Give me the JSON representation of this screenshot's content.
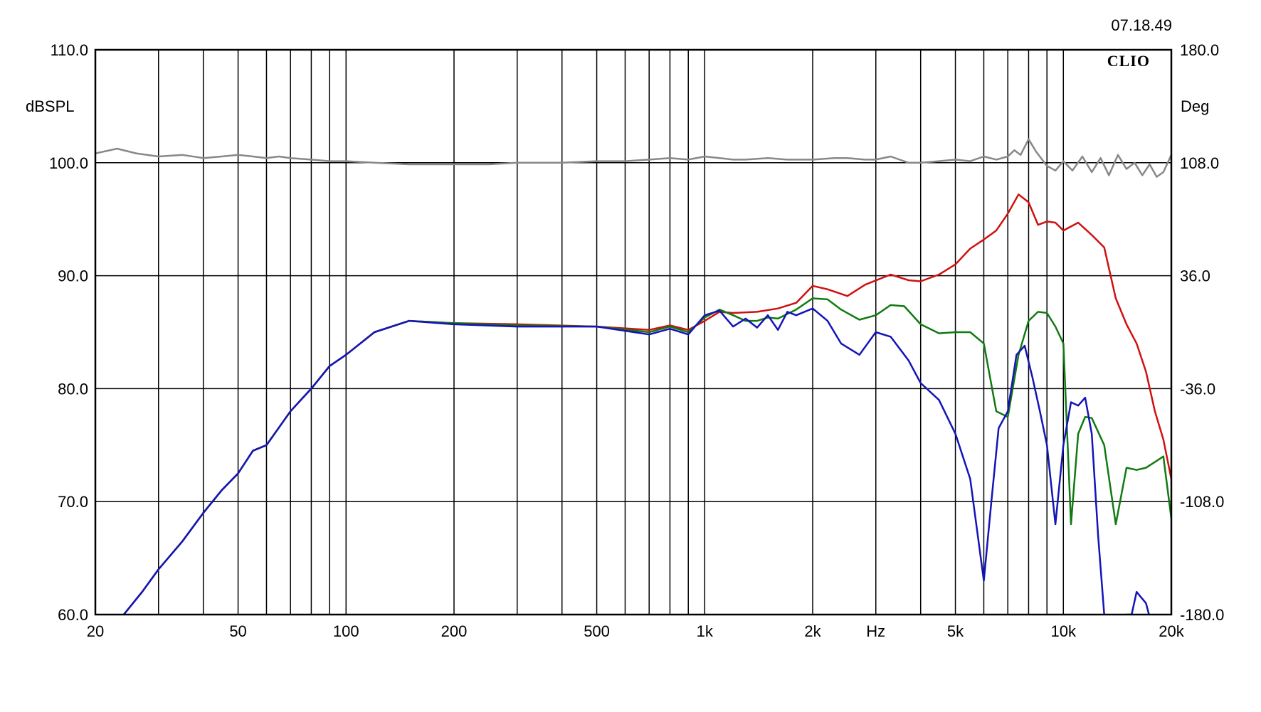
{
  "timestamp": "07.18.49",
  "brand": "CLIO",
  "chart_data": {
    "type": "line",
    "xscale": "log",
    "xlim": [
      20,
      20000
    ],
    "xlabel": "Hz",
    "x_tick_values": [
      20,
      50,
      100,
      200,
      500,
      1000,
      2000,
      5000,
      10000,
      20000
    ],
    "x_tick_labels": [
      "20",
      "50",
      "100",
      "200",
      "500",
      "1k",
      "2k",
      "5k",
      "10k",
      "20k"
    ],
    "x_grid": [
      20,
      30,
      40,
      50,
      60,
      70,
      80,
      90,
      100,
      200,
      300,
      400,
      500,
      600,
      700,
      800,
      900,
      1000,
      2000,
      3000,
      4000,
      5000,
      6000,
      7000,
      8000,
      9000,
      10000,
      20000
    ],
    "ylabel": "dBSPL",
    "ylim": [
      60,
      110
    ],
    "y_ticks": [
      60,
      70,
      80,
      90,
      100,
      110
    ],
    "y_tick_labels": [
      "60.0",
      "70.0",
      "80.0",
      "90.0",
      "100.0",
      "110.0"
    ],
    "y2label": "Deg",
    "y2lim": [
      -180,
      180
    ],
    "y2_ticks": [
      -180,
      -108,
      -36,
      36,
      108,
      180
    ],
    "y2_tick_labels": [
      "-180.0",
      "-108.0",
      "-36.0",
      "36.0",
      "108.0",
      "180.0"
    ],
    "grid": true,
    "series": [
      {
        "color": "#888888",
        "axis": "y2",
        "width": 2.5,
        "x": [
          20,
          23,
          26,
          30,
          35,
          40,
          45,
          50,
          55,
          60,
          65,
          70,
          80,
          90,
          100,
          120,
          150,
          200,
          250,
          300,
          400,
          500,
          600,
          700,
          800,
          900,
          1000,
          1100,
          1200,
          1300,
          1500,
          1700,
          2000,
          2300,
          2500,
          2800,
          3000,
          3300,
          3700,
          4000,
          4500,
          5000,
          5500,
          6000,
          6500,
          7000,
          7300,
          7600,
          8000,
          8400,
          9000,
          9500,
          10000,
          10600,
          11300,
          12000,
          12700,
          13400,
          14200,
          15000,
          15800,
          16600,
          17400,
          18200,
          19000,
          20000
        ],
        "y": [
          114,
          117,
          114,
          112,
          113,
          111,
          112,
          113,
          112,
          111,
          112,
          111,
          110,
          109,
          109,
          108,
          107,
          107,
          107,
          108,
          108,
          109,
          109,
          110,
          111,
          110,
          112,
          111,
          110,
          110,
          111,
          110,
          110,
          111,
          111,
          110,
          110,
          112,
          108,
          108,
          109,
          110,
          109,
          112,
          110,
          112,
          116,
          113,
          123,
          115,
          106,
          103,
          109,
          103,
          112,
          102,
          111,
          100,
          113,
          104,
          108,
          100,
          107,
          99,
          102,
          113
        ]
      },
      {
        "color": "#d01010",
        "axis": "y",
        "width": 2.5,
        "x": [
          20,
          24,
          27,
          30,
          35,
          40,
          45,
          50,
          55,
          60,
          70,
          80,
          90,
          100,
          120,
          150,
          200,
          300,
          500,
          700,
          800,
          900,
          1000,
          1100,
          1200,
          1400,
          1600,
          1800,
          2000,
          2200,
          2500,
          2800,
          3300,
          3700,
          4000,
          4500,
          5000,
          5500,
          6000,
          6500,
          7000,
          7500,
          8000,
          8500,
          9000,
          9500,
          10000,
          11000,
          12000,
          13000,
          14000,
          15000,
          16000,
          17000,
          18000,
          19000,
          20000
        ],
        "y": [
          57,
          60,
          62,
          64,
          66.5,
          69,
          71,
          72.5,
          74.5,
          75,
          78,
          80,
          82,
          83,
          85,
          86,
          85.8,
          85.7,
          85.5,
          85.2,
          85.6,
          85.2,
          86.0,
          86.8,
          86.7,
          86.8,
          87.1,
          87.6,
          89.1,
          88.8,
          88.2,
          89.2,
          90.1,
          89.6,
          89.5,
          90.1,
          91.0,
          92.4,
          93.2,
          94.0,
          95.5,
          97.2,
          96.5,
          94.5,
          94.8,
          94.7,
          94.0,
          94.7,
          93.6,
          92.5,
          88.0,
          85.7,
          84.0,
          81.5,
          78.0,
          75.5,
          72.0
        ]
      },
      {
        "color": "#117a11",
        "axis": "y",
        "width": 2.5,
        "x": [
          20,
          24,
          27,
          30,
          35,
          40,
          45,
          50,
          55,
          60,
          70,
          80,
          90,
          100,
          120,
          150,
          200,
          300,
          500,
          700,
          800,
          900,
          1000,
          1100,
          1200,
          1300,
          1400,
          1500,
          1600,
          1800,
          2000,
          2200,
          2400,
          2700,
          3000,
          3300,
          3600,
          4000,
          4500,
          5000,
          5500,
          6000,
          6500,
          7000,
          7500,
          8000,
          8500,
          9000,
          9500,
          10000,
          10500,
          11000,
          11500,
          12000,
          13000,
          14000,
          15000,
          16000,
          17000,
          18000,
          19000,
          20000
        ],
        "y": [
          57,
          60,
          62,
          64,
          66.5,
          69,
          71,
          72.5,
          74.5,
          75,
          78,
          80,
          82,
          83,
          85,
          86,
          85.8,
          85.6,
          85.5,
          85.0,
          85.5,
          85.0,
          86.3,
          87.0,
          86.5,
          86.0,
          86.0,
          86.3,
          86.2,
          87.0,
          88.0,
          87.9,
          87.0,
          86.1,
          86.5,
          87.4,
          87.3,
          85.7,
          84.9,
          85.0,
          85.0,
          84.0,
          78.0,
          77.5,
          83.0,
          86.0,
          86.8,
          86.7,
          85.5,
          84.0,
          68.0,
          76.0,
          77.5,
          77.4,
          75.0,
          68.0,
          73.0,
          72.8,
          73.0,
          73.5,
          74.0,
          68.5
        ]
      },
      {
        "color": "#1414b8",
        "axis": "y",
        "width": 2.5,
        "x": [
          20,
          24,
          27,
          30,
          35,
          40,
          45,
          50,
          55,
          60,
          70,
          80,
          90,
          100,
          120,
          150,
          200,
          300,
          500,
          700,
          800,
          900,
          1000,
          1100,
          1200,
          1300,
          1400,
          1500,
          1600,
          1700,
          1800,
          2000,
          2200,
          2400,
          2700,
          3000,
          3300,
          3700,
          4000,
          4500,
          5000,
          5500,
          6000,
          6300,
          6600,
          7000,
          7400,
          7800,
          8200,
          8600,
          9000,
          9500,
          10000,
          10500,
          11000,
          11500,
          12000,
          12500,
          13000,
          13500,
          14000,
          14500,
          15000,
          15500,
          16000,
          17000,
          18000,
          19000,
          20000
        ],
        "y": [
          57,
          60,
          62,
          64,
          66.5,
          69,
          71,
          72.5,
          74.5,
          75,
          78,
          80,
          82,
          83,
          85,
          86,
          85.7,
          85.5,
          85.5,
          84.8,
          85.3,
          84.8,
          86.5,
          86.9,
          85.5,
          86.2,
          85.4,
          86.5,
          85.2,
          86.8,
          86.5,
          87.1,
          86.0,
          84.0,
          83.0,
          85.0,
          84.6,
          82.5,
          80.5,
          79.0,
          76.0,
          72.0,
          63.0,
          70.0,
          76.5,
          78.0,
          83.0,
          83.8,
          81.0,
          78.0,
          75.0,
          68.0,
          75.0,
          78.8,
          78.5,
          79.2,
          76.0,
          67.0,
          60.0,
          53.0,
          50.0,
          55.0,
          60.0,
          60.0,
          62.0,
          61.0,
          58.0,
          57.0,
          56.0
        ]
      }
    ]
  }
}
